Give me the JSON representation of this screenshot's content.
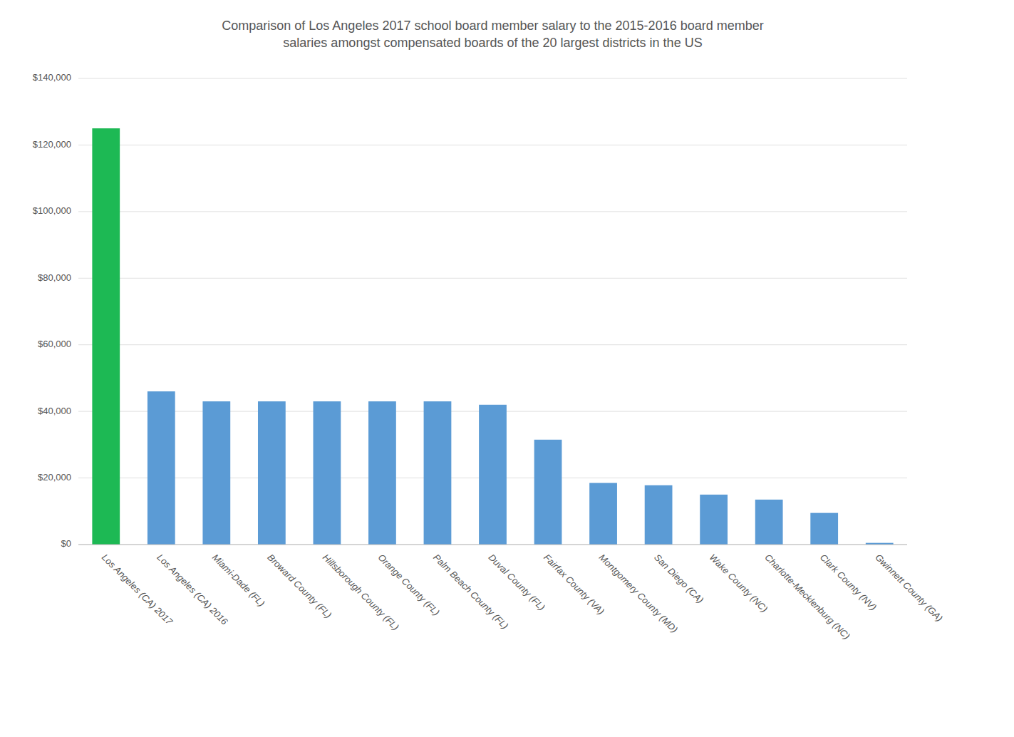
{
  "chart_data": {
    "type": "bar",
    "title": "Comparison of Los Angeles 2017 school board member salary to the 2015-2016 board member\nsalaries amongst compensated boards of the 20 largest districts in the US",
    "categories": [
      "Los Angeles (CA) 2017",
      "Los Angeles (CA) 2016",
      "Miami-Dade (FL)",
      "Broward County (FL)",
      "Hillsborough County (FL)",
      "Orange County (FL)",
      "Palm Beach County (FL)",
      "Duval County (FL)",
      "Fairfax County (VA)",
      "Montgomery County (MD)",
      "San Diego (CA)",
      "Wake County (NC)",
      "Charlotte-Mecklenburg (NC)",
      "Clark County (NV)",
      "Gwinnett County (GA)"
    ],
    "values": [
      125000,
      46000,
      43000,
      43000,
      43000,
      43000,
      43000,
      42000,
      31500,
      18500,
      17800,
      15000,
      13500,
      9500,
      500
    ],
    "colors": [
      "#1db954",
      "#5b9bd5",
      "#5b9bd5",
      "#5b9bd5",
      "#5b9bd5",
      "#5b9bd5",
      "#5b9bd5",
      "#5b9bd5",
      "#5b9bd5",
      "#5b9bd5",
      "#5b9bd5",
      "#5b9bd5",
      "#5b9bd5",
      "#5b9bd5",
      "#5b9bd5"
    ],
    "ylim": [
      0,
      140000
    ],
    "yticks": [
      {
        "value": 0,
        "label": "$0"
      },
      {
        "value": 20000,
        "label": "$20,000"
      },
      {
        "value": 40000,
        "label": "$40,000"
      },
      {
        "value": 60000,
        "label": "$60,000"
      },
      {
        "value": 80000,
        "label": "$80,000"
      },
      {
        "value": 100000,
        "label": "$100,000"
      },
      {
        "value": 120000,
        "label": "$120,000"
      },
      {
        "value": 140000,
        "label": "$140,000"
      }
    ],
    "grid": true
  }
}
